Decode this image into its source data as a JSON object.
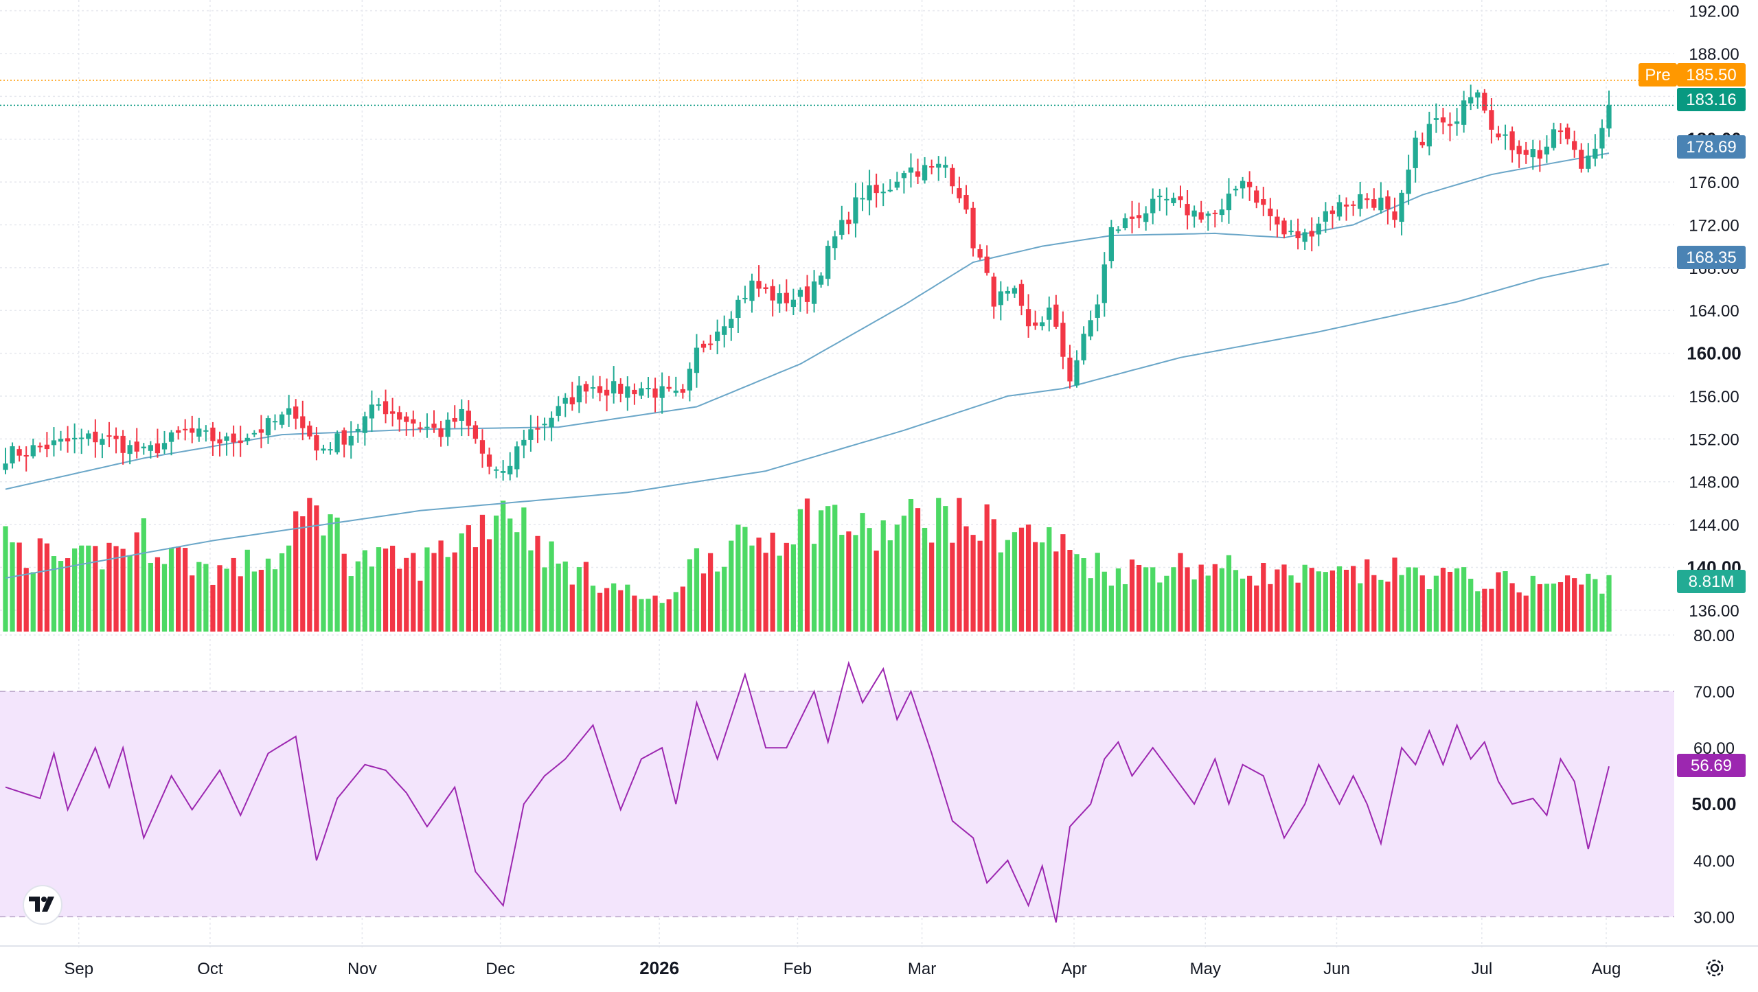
{
  "chart_data": {
    "type": "candlestick",
    "price_axis": {
      "range": [
        134,
        193
      ],
      "ticks": [
        "136.00",
        "140.00",
        "144.00",
        "148.00",
        "152.00",
        "156.00",
        "160.00",
        "164.00",
        "168.00",
        "172.00",
        "176.00",
        "180.00",
        "184.00",
        "188.00",
        "192.00"
      ],
      "bold_ticks": [
        "140.00",
        "160.00",
        "180.00"
      ]
    },
    "time_axis": {
      "labels": [
        "Sep",
        "Oct",
        "Nov",
        "Dec",
        "2026",
        "Feb",
        "Mar",
        "Apr",
        "May",
        "Jun",
        "Jul",
        "Aug"
      ],
      "bold_labels": [
        "2026"
      ]
    },
    "price_line_anchors": [
      {
        "bar": 0,
        "close": 150.5
      },
      {
        "bar": 8,
        "close": 151.6
      },
      {
        "bar": 14,
        "close": 152.2
      },
      {
        "bar": 20,
        "close": 150.6
      },
      {
        "bar": 26,
        "close": 152.6
      },
      {
        "bar": 32,
        "close": 151.7
      },
      {
        "bar": 37,
        "close": 152.9
      },
      {
        "bar": 42,
        "close": 154.6
      },
      {
        "bar": 45,
        "close": 150.9
      },
      {
        "bar": 50,
        "close": 152.5
      },
      {
        "bar": 54,
        "close": 155.2
      },
      {
        "bar": 58,
        "close": 153.8
      },
      {
        "bar": 63,
        "close": 152.6
      },
      {
        "bar": 66,
        "close": 154.2
      },
      {
        "bar": 70,
        "close": 149.4
      },
      {
        "bar": 72,
        "close": 148.3
      },
      {
        "bar": 75,
        "close": 152.3
      },
      {
        "bar": 80,
        "close": 154.6
      },
      {
        "bar": 84,
        "close": 157.1
      },
      {
        "bar": 88,
        "close": 156.6
      },
      {
        "bar": 92,
        "close": 156.8
      },
      {
        "bar": 98,
        "close": 155.7
      },
      {
        "bar": 100,
        "close": 160.1
      },
      {
        "bar": 104,
        "close": 163.2
      },
      {
        "bar": 108,
        "close": 166.4
      },
      {
        "bar": 112,
        "close": 165.0
      },
      {
        "bar": 116,
        "close": 165.4
      },
      {
        "bar": 120,
        "close": 170.7
      },
      {
        "bar": 124,
        "close": 175.0
      },
      {
        "bar": 127,
        "close": 174.8
      },
      {
        "bar": 130,
        "close": 177.3
      },
      {
        "bar": 134,
        "close": 177.1
      },
      {
        "bar": 136,
        "close": 177.6
      },
      {
        "bar": 138,
        "close": 175.1
      },
      {
        "bar": 140,
        "close": 170.4
      },
      {
        "bar": 143,
        "close": 165.1
      },
      {
        "bar": 146,
        "close": 165.3
      },
      {
        "bar": 148,
        "close": 162.1
      },
      {
        "bar": 151,
        "close": 163.9
      },
      {
        "bar": 154,
        "close": 157.8
      },
      {
        "bar": 156,
        "close": 161.2
      },
      {
        "bar": 158,
        "close": 164.8
      },
      {
        "bar": 160,
        "close": 171.4
      },
      {
        "bar": 164,
        "close": 173.1
      },
      {
        "bar": 168,
        "close": 174.2
      },
      {
        "bar": 172,
        "close": 173.1
      },
      {
        "bar": 176,
        "close": 173.0
      },
      {
        "bar": 179,
        "close": 176.6
      },
      {
        "bar": 182,
        "close": 173.6
      },
      {
        "bar": 185,
        "close": 171.1
      },
      {
        "bar": 188,
        "close": 170.9
      },
      {
        "bar": 191,
        "close": 173.2
      },
      {
        "bar": 196,
        "close": 174.6
      },
      {
        "bar": 199,
        "close": 174.1
      },
      {
        "bar": 201,
        "close": 171.8
      },
      {
        "bar": 204,
        "close": 179.4
      },
      {
        "bar": 207,
        "close": 181.8
      },
      {
        "bar": 209,
        "close": 180.6
      },
      {
        "bar": 211,
        "close": 184.2
      },
      {
        "bar": 213,
        "close": 185.0
      },
      {
        "bar": 216,
        "close": 180.0
      },
      {
        "bar": 219,
        "close": 179.2
      },
      {
        "bar": 222,
        "close": 178.6
      },
      {
        "bar": 225,
        "close": 180.9
      },
      {
        "bar": 228,
        "close": 177.4
      },
      {
        "bar": 230,
        "close": 179.8
      },
      {
        "bar": 232,
        "close": 183.16
      }
    ],
    "volume_anchors": [
      {
        "bar": 0,
        "v": 0.65
      },
      {
        "bar": 10,
        "v": 0.5
      },
      {
        "bar": 20,
        "v": 0.7
      },
      {
        "bar": 30,
        "v": 0.45
      },
      {
        "bar": 40,
        "v": 0.55
      },
      {
        "bar": 45,
        "v": 1.0
      },
      {
        "bar": 50,
        "v": 0.55
      },
      {
        "bar": 60,
        "v": 0.5
      },
      {
        "bar": 70,
        "v": 0.85
      },
      {
        "bar": 72,
        "v": 1.0
      },
      {
        "bar": 80,
        "v": 0.5
      },
      {
        "bar": 90,
        "v": 0.3
      },
      {
        "bar": 95,
        "v": 0.2
      },
      {
        "bar": 100,
        "v": 0.55
      },
      {
        "bar": 110,
        "v": 0.7
      },
      {
        "bar": 118,
        "v": 0.9
      },
      {
        "bar": 125,
        "v": 0.7
      },
      {
        "bar": 135,
        "v": 0.9
      },
      {
        "bar": 140,
        "v": 0.8
      },
      {
        "bar": 150,
        "v": 0.7
      },
      {
        "bar": 160,
        "v": 0.45
      },
      {
        "bar": 170,
        "v": 0.5
      },
      {
        "bar": 180,
        "v": 0.45
      },
      {
        "bar": 190,
        "v": 0.4
      },
      {
        "bar": 200,
        "v": 0.45
      },
      {
        "bar": 210,
        "v": 0.4
      },
      {
        "bar": 220,
        "v": 0.35
      },
      {
        "bar": 232,
        "v": 0.38
      }
    ],
    "ma_short": [
      {
        "bar": 0,
        "price": 147.3
      },
      {
        "bar": 20,
        "price": 150.2
      },
      {
        "bar": 40,
        "price": 152.4
      },
      {
        "bar": 60,
        "price": 152.9
      },
      {
        "bar": 80,
        "price": 153.1
      },
      {
        "bar": 100,
        "price": 155.0
      },
      {
        "bar": 115,
        "price": 159.0
      },
      {
        "bar": 130,
        "price": 164.5
      },
      {
        "bar": 140,
        "price": 168.5
      },
      {
        "bar": 150,
        "price": 170.0
      },
      {
        "bar": 160,
        "price": 171.0
      },
      {
        "bar": 175,
        "price": 171.2
      },
      {
        "bar": 185,
        "price": 170.8
      },
      {
        "bar": 195,
        "price": 172.0
      },
      {
        "bar": 205,
        "price": 174.8
      },
      {
        "bar": 215,
        "price": 176.7
      },
      {
        "bar": 225,
        "price": 177.9
      },
      {
        "bar": 232,
        "price": 178.69
      }
    ],
    "ma_long": [
      {
        "bar": 0,
        "price": 139.0
      },
      {
        "bar": 30,
        "price": 142.5
      },
      {
        "bar": 60,
        "price": 145.3
      },
      {
        "bar": 90,
        "price": 147.0
      },
      {
        "bar": 110,
        "price": 149.0
      },
      {
        "bar": 130,
        "price": 152.8
      },
      {
        "bar": 145,
        "price": 156.0
      },
      {
        "bar": 153,
        "price": 156.7
      },
      {
        "bar": 170,
        "price": 159.6
      },
      {
        "bar": 190,
        "price": 162.0
      },
      {
        "bar": 210,
        "price": 164.8
      },
      {
        "bar": 222,
        "price": 167.0
      },
      {
        "bar": 232,
        "price": 168.35
      }
    ],
    "rsi": {
      "range": [
        27,
        80
      ],
      "ticks": [
        "30.00",
        "40.00",
        "50.00",
        "60.00",
        "70.00",
        "80.00"
      ],
      "bold_ticks": [
        "50.00"
      ],
      "overbought": 70,
      "oversold": 30,
      "anchors": [
        {
          "bar": 0,
          "v": 53
        },
        {
          "bar": 5,
          "v": 51
        },
        {
          "bar": 7,
          "v": 59
        },
        {
          "bar": 9,
          "v": 49
        },
        {
          "bar": 13,
          "v": 60
        },
        {
          "bar": 15,
          "v": 53
        },
        {
          "bar": 17,
          "v": 60
        },
        {
          "bar": 20,
          "v": 44
        },
        {
          "bar": 24,
          "v": 55
        },
        {
          "bar": 27,
          "v": 49
        },
        {
          "bar": 31,
          "v": 56
        },
        {
          "bar": 34,
          "v": 48
        },
        {
          "bar": 38,
          "v": 59
        },
        {
          "bar": 42,
          "v": 62
        },
        {
          "bar": 45,
          "v": 40
        },
        {
          "bar": 48,
          "v": 51
        },
        {
          "bar": 52,
          "v": 57
        },
        {
          "bar": 55,
          "v": 56
        },
        {
          "bar": 58,
          "v": 52
        },
        {
          "bar": 61,
          "v": 46
        },
        {
          "bar": 65,
          "v": 53
        },
        {
          "bar": 68,
          "v": 38
        },
        {
          "bar": 72,
          "v": 32
        },
        {
          "bar": 75,
          "v": 50
        },
        {
          "bar": 78,
          "v": 55
        },
        {
          "bar": 81,
          "v": 58
        },
        {
          "bar": 85,
          "v": 64
        },
        {
          "bar": 89,
          "v": 49
        },
        {
          "bar": 92,
          "v": 58
        },
        {
          "bar": 95,
          "v": 60
        },
        {
          "bar": 97,
          "v": 50
        },
        {
          "bar": 100,
          "v": 68
        },
        {
          "bar": 103,
          "v": 58
        },
        {
          "bar": 107,
          "v": 73
        },
        {
          "bar": 110,
          "v": 60
        },
        {
          "bar": 113,
          "v": 60
        },
        {
          "bar": 117,
          "v": 70
        },
        {
          "bar": 119,
          "v": 61
        },
        {
          "bar": 122,
          "v": 75
        },
        {
          "bar": 124,
          "v": 68
        },
        {
          "bar": 127,
          "v": 74
        },
        {
          "bar": 129,
          "v": 65
        },
        {
          "bar": 131,
          "v": 70
        },
        {
          "bar": 134,
          "v": 59
        },
        {
          "bar": 137,
          "v": 47
        },
        {
          "bar": 140,
          "v": 44
        },
        {
          "bar": 142,
          "v": 36
        },
        {
          "bar": 145,
          "v": 40
        },
        {
          "bar": 148,
          "v": 32
        },
        {
          "bar": 150,
          "v": 39
        },
        {
          "bar": 152,
          "v": 29
        },
        {
          "bar": 154,
          "v": 46
        },
        {
          "bar": 157,
          "v": 50
        },
        {
          "bar": 159,
          "v": 58
        },
        {
          "bar": 161,
          "v": 61
        },
        {
          "bar": 163,
          "v": 55
        },
        {
          "bar": 166,
          "v": 60
        },
        {
          "bar": 169,
          "v": 55
        },
        {
          "bar": 172,
          "v": 50
        },
        {
          "bar": 175,
          "v": 58
        },
        {
          "bar": 177,
          "v": 50
        },
        {
          "bar": 179,
          "v": 57
        },
        {
          "bar": 182,
          "v": 55
        },
        {
          "bar": 185,
          "v": 44
        },
        {
          "bar": 188,
          "v": 50
        },
        {
          "bar": 190,
          "v": 57
        },
        {
          "bar": 193,
          "v": 50
        },
        {
          "bar": 195,
          "v": 55
        },
        {
          "bar": 197,
          "v": 50
        },
        {
          "bar": 199,
          "v": 43
        },
        {
          "bar": 202,
          "v": 60
        },
        {
          "bar": 204,
          "v": 57
        },
        {
          "bar": 206,
          "v": 63
        },
        {
          "bar": 208,
          "v": 57
        },
        {
          "bar": 210,
          "v": 64
        },
        {
          "bar": 212,
          "v": 58
        },
        {
          "bar": 214,
          "v": 61
        },
        {
          "bar": 216,
          "v": 54
        },
        {
          "bar": 218,
          "v": 50
        },
        {
          "bar": 221,
          "v": 51
        },
        {
          "bar": 223,
          "v": 48
        },
        {
          "bar": 225,
          "v": 58
        },
        {
          "bar": 227,
          "v": 54
        },
        {
          "bar": 229,
          "v": 42
        },
        {
          "bar": 232,
          "v": 56.69
        }
      ]
    }
  },
  "badges": {
    "pre_label": "Pre",
    "pre_value": "185.50",
    "last_price": "183.16",
    "ma_short": "178.69",
    "ma_long": "168.35",
    "volume": "8.81M",
    "rsi": "56.69"
  },
  "levels": {
    "pre": 185.5,
    "last": 183.16
  },
  "colors": {
    "up": "#26a69a",
    "up_candle": "#22ab94",
    "down": "#f23645",
    "volume_up": "#4cd964",
    "volume_down": "#f23645",
    "ma": "#6aa6c8",
    "badge_ma": "#4a83b4",
    "badge_last": "#089981",
    "badge_pre": "#ff9800",
    "rsi_line": "#9c27b0",
    "rsi_fill": "#f3e5fc",
    "rsi_badge": "#9c27b0",
    "grid": "#e6e8ee"
  },
  "icons": {
    "logo": "tradingview-logo-icon",
    "settings": "settings-gear-icon"
  }
}
